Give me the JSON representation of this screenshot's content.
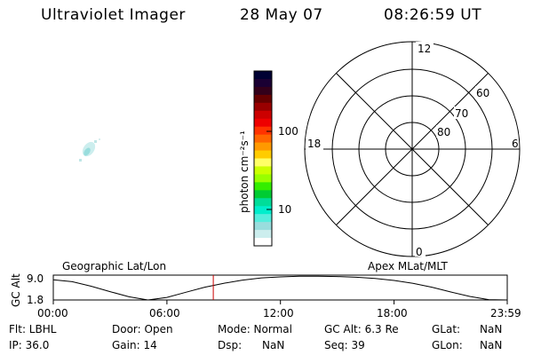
{
  "header": {
    "instrument": "Ultraviolet Imager",
    "date": "28 May 07",
    "time": "08:26:59 UT"
  },
  "colorbar": {
    "unit_label": "photon cm⁻²s⁻¹",
    "tick_labels": [
      "100",
      "10"
    ],
    "colors": [
      "#000033",
      "#1a0033",
      "#33001a",
      "#660000",
      "#990000",
      "#cc0000",
      "#ee0000",
      "#ff3300",
      "#ff6600",
      "#ff9900",
      "#ffcc00",
      "#ffff66",
      "#ccff00",
      "#99ff00",
      "#33ee00",
      "#00cc33",
      "#00dd99",
      "#00eecc",
      "#55eedd",
      "#99dddd",
      "#cceeee",
      "#ffffff"
    ]
  },
  "polar": {
    "mlt_labels": {
      "top": "12",
      "left": "18",
      "right": "6",
      "bottom": "0"
    },
    "lat_labels": [
      "60",
      "70",
      "80"
    ]
  },
  "timeline": {
    "left_title": "Geographic Lat/Lon",
    "right_title": "Apex MLat/MLT",
    "ylabel": "GC Alt",
    "ytick_labels": [
      "9.0",
      "1.8"
    ],
    "xtick_labels": [
      "00:00",
      "06:00",
      "12:00",
      "18:00",
      "23:59"
    ],
    "marker_color": "#cc0000"
  },
  "chart_data": {
    "type": "line",
    "title": "",
    "xlabel": "",
    "ylabel": "GC Alt",
    "x_hours": [
      0,
      1,
      2,
      3,
      4,
      5,
      6,
      7,
      8,
      9,
      10,
      11,
      12,
      13,
      14,
      15,
      16,
      17,
      18,
      19,
      20,
      21,
      22,
      23,
      23.98
    ],
    "values": [
      8.1,
      7.5,
      6.1,
      4.4,
      2.8,
      1.8,
      2.6,
      4.2,
      5.8,
      7.0,
      8.0,
      8.7,
      9.0,
      9.2,
      9.2,
      9.1,
      8.9,
      8.5,
      7.9,
      7.0,
      5.8,
      4.3,
      2.9,
      1.9,
      1.8
    ],
    "xlim": [
      0,
      23.98
    ],
    "ylim": [
      1.8,
      9.0
    ],
    "current_time_hours": 8.45
  },
  "footer": {
    "rows": [
      [
        "Flt: LBHL",
        "Door: Open",
        "Mode: Normal",
        "GC Alt: 6.3 Re",
        "GLat:",
        "NaN"
      ],
      [
        "IP: 36.0",
        "Gain: 14",
        "Dsp:      NaN",
        "Seq: 39",
        "GLon:",
        "NaN"
      ]
    ]
  }
}
